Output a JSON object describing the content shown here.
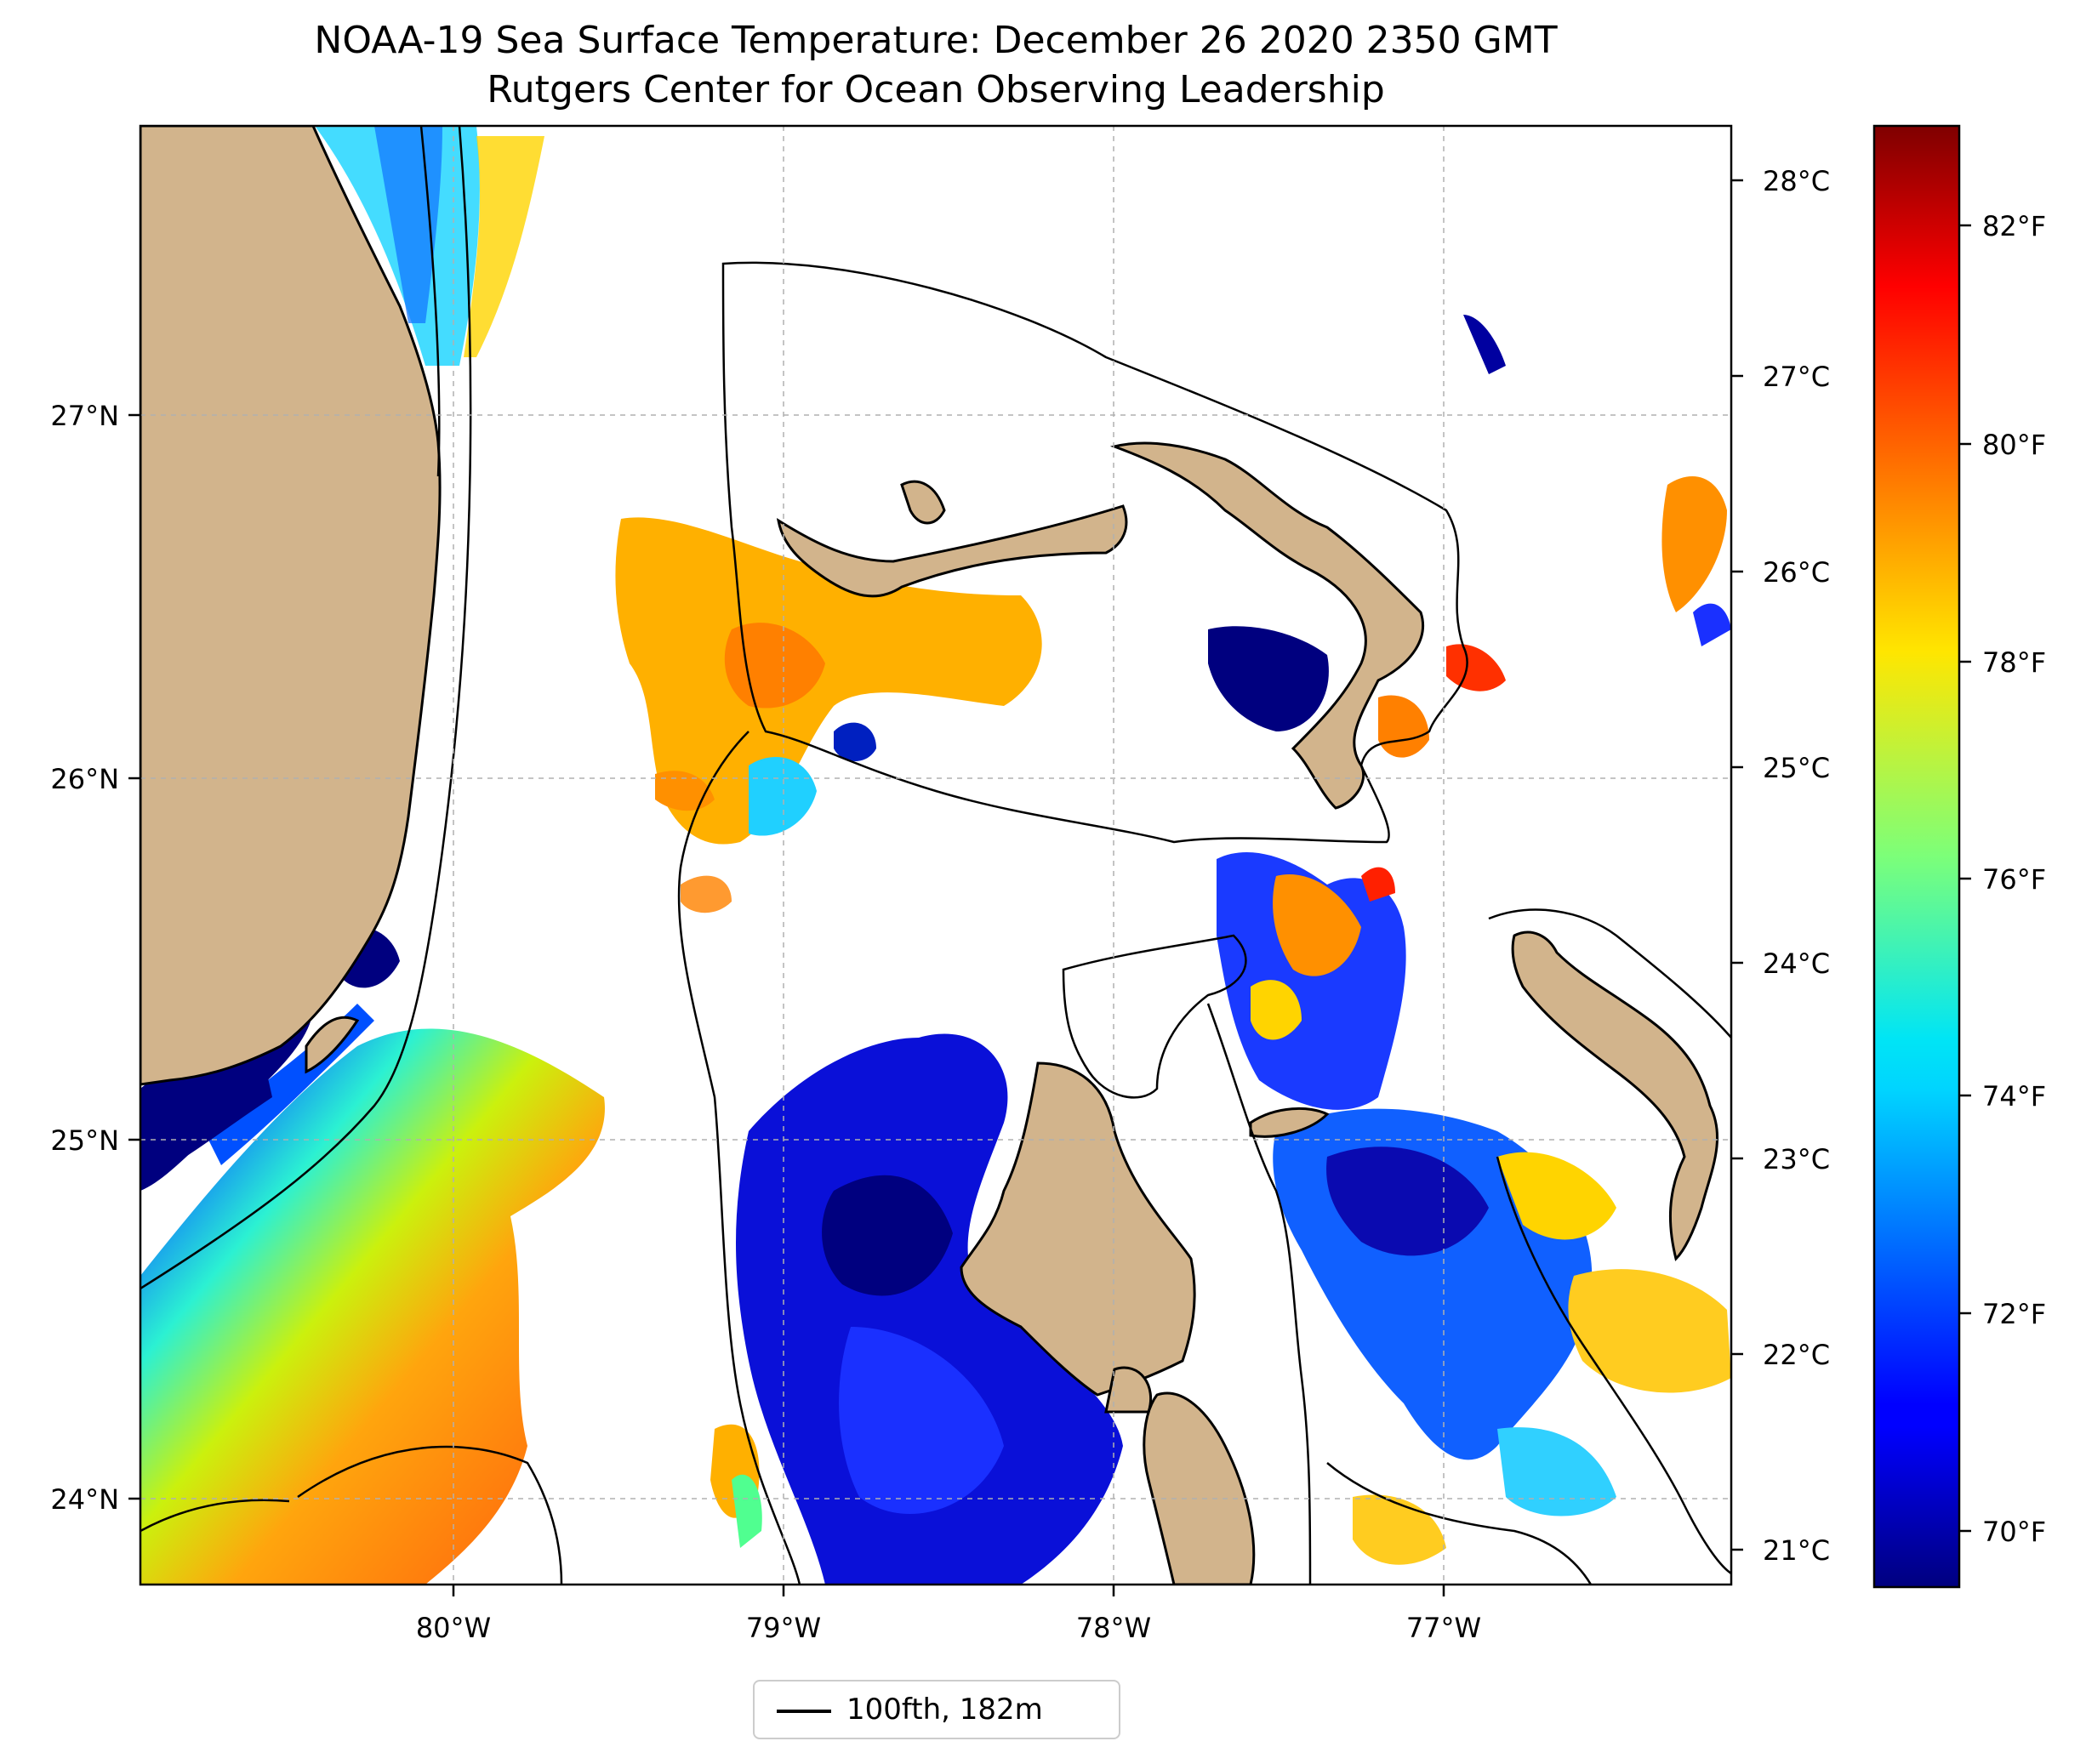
{
  "title": {
    "line1": "NOAA-19 Sea Surface Temperature: December 26 2020 2350 GMT",
    "line2": "Rutgers Center for Ocean Observing Leadership"
  },
  "map": {
    "longitude_ticks": [
      "80°W",
      "79°W",
      "78°W",
      "77°W"
    ],
    "latitude_ticks": [
      "27°N",
      "26°N",
      "25°N",
      "24°N"
    ],
    "celsius_ticks": [
      "28°C",
      "27°C",
      "26°C",
      "25°C",
      "24°C",
      "23°C",
      "22°C",
      "21°C"
    ],
    "land_color": "#d2b48c",
    "contour_color": "#000000"
  },
  "colorbar": {
    "colormap": "jet",
    "fahrenheit_ticks": [
      "82°F",
      "80°F",
      "78°F",
      "76°F",
      "74°F",
      "72°F",
      "70°F"
    ],
    "range_f": [
      69.2,
      83.2
    ]
  },
  "legend": {
    "label": "100fth, 182m"
  }
}
